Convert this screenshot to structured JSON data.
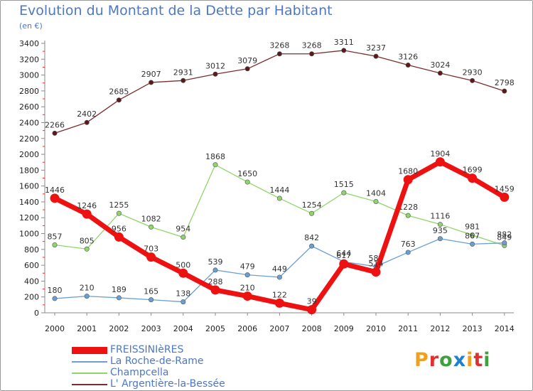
{
  "title": "Evolution du Montant de la Dette par Habitant",
  "unit": "(en €)",
  "logo": {
    "text": "Proxiti",
    "letters": [
      "P",
      "r",
      "o",
      "x",
      "i",
      "t",
      "i"
    ],
    "colors": [
      "#f0a020",
      "#e03030",
      "#40a040",
      "#2080d0",
      "#f0a020",
      "#e03030",
      "#40a040"
    ]
  },
  "chart_data": {
    "type": "line",
    "title": "Evolution du Montant de la Dette par Habitant",
    "subtitle": "(en €)",
    "x": [
      "2000",
      "2001",
      "2002",
      "2003",
      "2004",
      "2005",
      "2006",
      "2007",
      "2008",
      "2009",
      "2010",
      "2011",
      "2012",
      "2013",
      "2014"
    ],
    "ylim": [
      0,
      3400
    ],
    "yticks": [
      0,
      200,
      400,
      600,
      800,
      1000,
      1200,
      1400,
      1600,
      1800,
      2000,
      2200,
      2400,
      2600,
      2800,
      3000,
      3200,
      3400
    ],
    "grid": false,
    "legend_position": "bottom-left",
    "series": [
      {
        "name": "L' Argentière-la-Bessée",
        "color": "#7b2e2e",
        "values": [
          2266,
          2402,
          2685,
          2907,
          2931,
          3012,
          3079,
          3268,
          3268,
          3311,
          3237,
          3126,
          3024,
          2930,
          2798
        ]
      },
      {
        "name": "Champcella",
        "color": "#8fd66a",
        "values": [
          857,
          805,
          1255,
          1082,
          954,
          1868,
          1650,
          1444,
          1254,
          1515,
          1404,
          1228,
          1116,
          981,
          849
        ]
      },
      {
        "name": "La Roche-de-Rame",
        "color": "#6a9fd1",
        "values": [
          180,
          210,
          189,
          165,
          138,
          539,
          479,
          449,
          842,
          644,
          584,
          763,
          935,
          867,
          882
        ]
      },
      {
        "name": "FREISSINIèRES",
        "color": "#ee1111",
        "values": [
          1446,
          1246,
          956,
          703,
          500,
          288,
          210,
          122,
          39,
          617,
          514,
          1680,
          1904,
          1699,
          1459
        ]
      }
    ]
  }
}
